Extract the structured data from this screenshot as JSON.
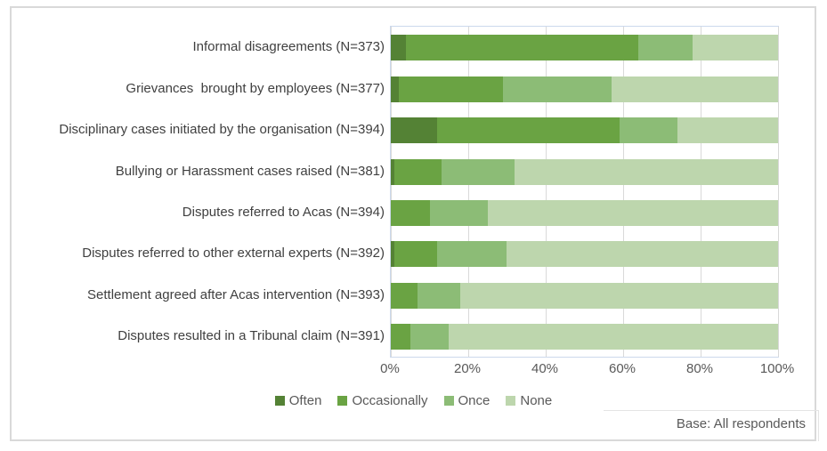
{
  "chart_data": {
    "type": "bar",
    "orientation": "horizontal",
    "stacked": true,
    "title": "",
    "categories": [
      "Informal disagreements (N=373)",
      "Grievances  brought by employees (N=377)",
      "Disciplinary cases initiated by the organisation (N=394)",
      "Bullying or Harassment cases raised (N=381)",
      "Disputes referred to Acas (N=394)",
      "Disputes referred to other external experts (N=392)",
      "Settlement agreed after Acas intervention (N=393)",
      "Disputes resulted in a Tribunal claim (N=391)"
    ],
    "series": [
      {
        "name": "Often",
        "color": "#548235",
        "values": [
          4,
          2,
          12,
          1,
          0,
          1,
          0,
          0
        ]
      },
      {
        "name": "Occasionally",
        "color": "#6aa343",
        "values": [
          60,
          27,
          47,
          12,
          10,
          11,
          7,
          5
        ]
      },
      {
        "name": "Once",
        "color": "#8cbc76",
        "values": [
          14,
          28,
          15,
          19,
          15,
          18,
          11,
          10
        ]
      },
      {
        "name": "None",
        "color": "#bdd6ad",
        "values": [
          22,
          43,
          26,
          68,
          75,
          70,
          82,
          85
        ]
      }
    ],
    "x_axis": {
      "min": 0,
      "max": 100,
      "tick_values": [
        0,
        20,
        40,
        60,
        80,
        100
      ],
      "tick_labels": [
        "0%",
        "20%",
        "40%",
        "60%",
        "80%",
        "100%"
      ],
      "grid": true,
      "unit": "percent"
    },
    "legend": {
      "position": "bottom-center",
      "entries": [
        "Often",
        "Occasionally",
        "Once",
        "None"
      ]
    },
    "note": "Base: All respondents"
  },
  "colors": {
    "often": "#548235",
    "occasionally": "#6aa343",
    "once": "#8cbc76",
    "none": "#bdd6ad",
    "gridline": "#d9d9d9",
    "plot_border": "#ccd9ec",
    "outer_border": "#d9d9d9",
    "label_text": "#404040",
    "axis_text": "#595959"
  }
}
